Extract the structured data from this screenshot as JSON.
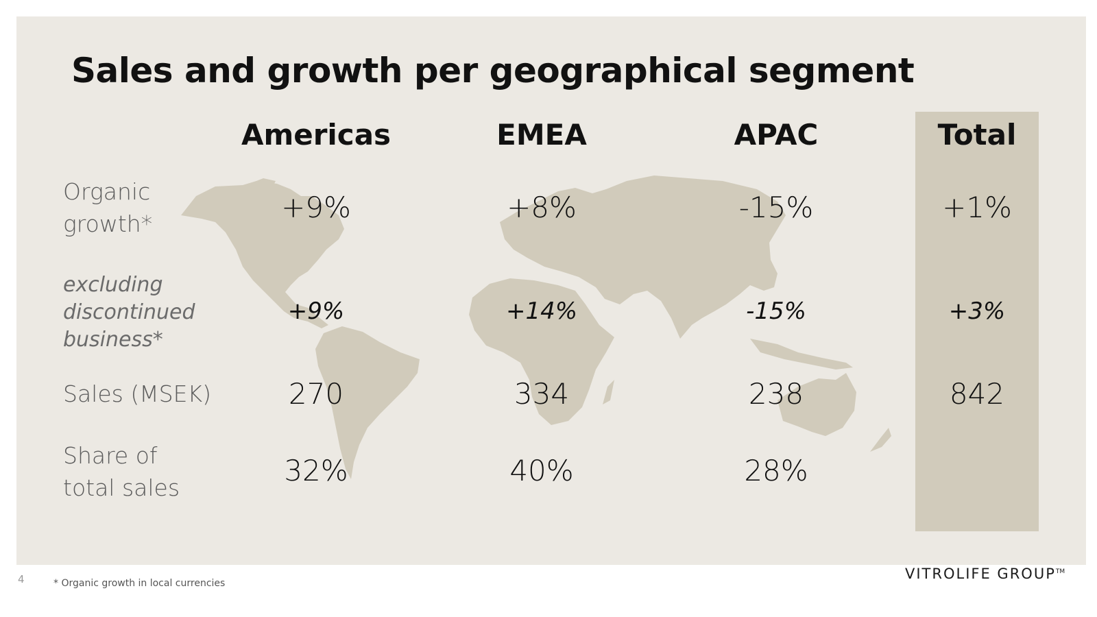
{
  "title": "Sales and growth per geographical segment",
  "columns": [
    "Americas",
    "EMEA",
    "APAC",
    "Total"
  ],
  "rows": [
    {
      "label_lines": [
        "Organic",
        "growth*"
      ],
      "values": [
        "+9%",
        "+8%",
        "-15%",
        "+1%"
      ]
    },
    {
      "label_lines": [
        "excluding",
        "discontinued",
        "business*"
      ],
      "values": [
        "+9%",
        "+14%",
        "-15%",
        "+3%"
      ]
    },
    {
      "label_lines": [
        "Sales (MSEK)"
      ],
      "values": [
        "270",
        "334",
        "238",
        "842"
      ]
    },
    {
      "label_lines": [
        "Share of",
        "total sales"
      ],
      "values": [
        "32%",
        "40%",
        "28%",
        ""
      ]
    }
  ],
  "footer": {
    "page_number": "4",
    "note": "* Organic growth in local currencies",
    "logo": "VITROLIFE GROUP",
    "logo_mark": "TM"
  },
  "colors": {
    "background": "#ece9e3",
    "map": "#d1cbbb",
    "total_column": "#d1cbbb"
  }
}
